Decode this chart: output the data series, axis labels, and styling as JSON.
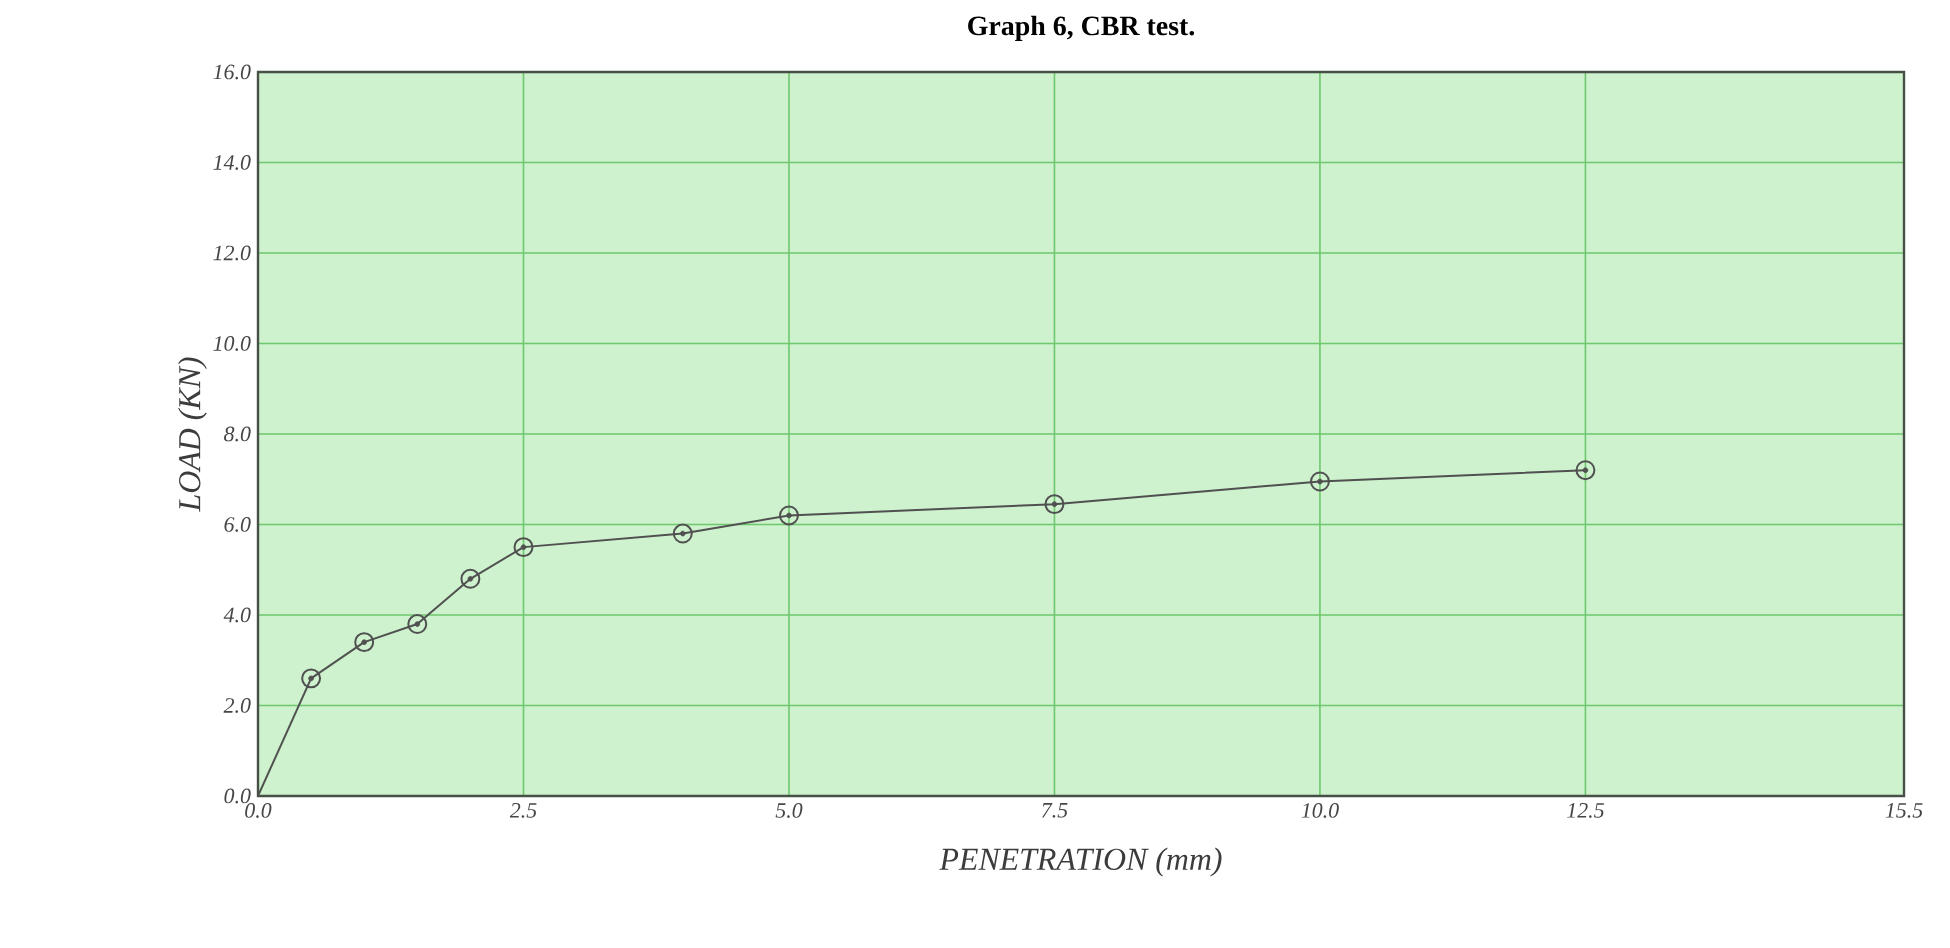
{
  "chart_data": {
    "type": "line",
    "title": "Graph 6, CBR test.",
    "xlabel": "PENETRATION (mm)",
    "ylabel": "LOAD (KN)",
    "series": [
      {
        "color": "#505050",
        "marker": "none",
        "x": [
          0,
          0.5
        ],
        "values": [
          0,
          2.6
        ]
      },
      {
        "color": "#505050",
        "marker": "circle",
        "x": [
          0.5,
          1.0,
          1.5,
          2.0,
          2.5,
          4.0,
          5.0,
          7.5,
          10.0,
          12.5
        ],
        "values": [
          2.6,
          3.4,
          3.8,
          4.8,
          5.5,
          5.8,
          6.2,
          6.45,
          6.95,
          7.2
        ]
      }
    ],
    "xlim": [
      0,
      15.5
    ],
    "ylim": [
      0,
      16
    ],
    "xticks": [
      {
        "value": 0,
        "label": "0.0"
      },
      2.5,
      {
        "value": 5,
        "label": "5.0"
      },
      7.5,
      {
        "value": 10,
        "label": "10.0"
      },
      12.5,
      15.5
    ],
    "yticks": [
      {
        "value": 0,
        "label": "0.0"
      },
      {
        "value": 2,
        "label": "2.0"
      },
      {
        "value": 4,
        "label": "4.0"
      },
      {
        "value": 6,
        "label": "6.0"
      },
      {
        "value": 8,
        "label": "8.0"
      },
      {
        "value": 10,
        "label": "10.0"
      },
      {
        "value": 12,
        "label": "12.0"
      },
      {
        "value": 14,
        "label": "14.0"
      },
      {
        "value": 16,
        "label": "16.0"
      }
    ],
    "grid": true,
    "line_style": "solid"
  }
}
